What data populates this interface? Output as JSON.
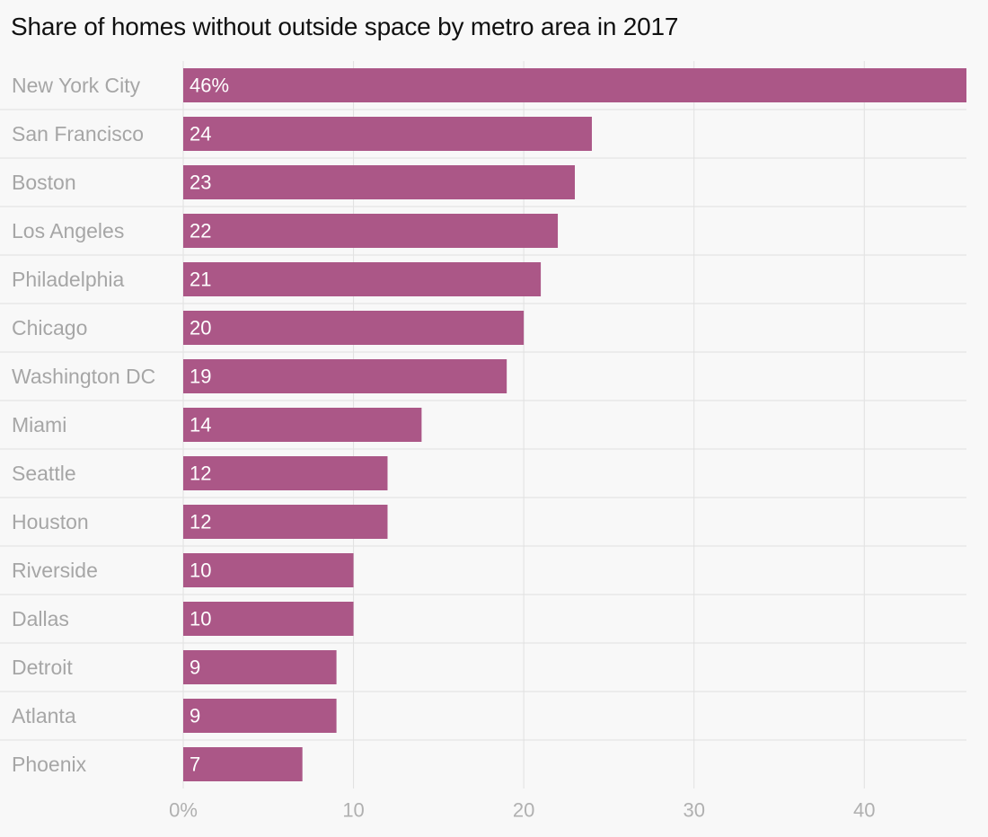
{
  "title": "Share of homes without outside space by metro area in 2017",
  "colors": {
    "bar": "#ab5787",
    "grid": "#e1e1e1",
    "background": "#f8f8f8"
  },
  "chart_data": {
    "type": "bar",
    "orientation": "horizontal",
    "title": "Share of homes without outside space by metro area in 2017",
    "categories": [
      "New York City",
      "San Francisco",
      "Boston",
      "Los Angeles",
      "Philadelphia",
      "Chicago",
      "Washington DC",
      "Miami",
      "Seattle",
      "Houston",
      "Riverside",
      "Dallas",
      "Detroit",
      "Atlanta",
      "Phoenix"
    ],
    "values": [
      46,
      24,
      23,
      22,
      21,
      20,
      19,
      14,
      12,
      12,
      10,
      10,
      9,
      9,
      7
    ],
    "data_labels": [
      "46%",
      "24",
      "23",
      "22",
      "21",
      "20",
      "19",
      "14",
      "12",
      "12",
      "10",
      "10",
      "9",
      "9",
      "7"
    ],
    "x_ticks": [
      0,
      10,
      20,
      30,
      40
    ],
    "x_tick_labels": [
      "0%",
      "10",
      "20",
      "30",
      "40"
    ],
    "xlim": [
      0,
      46
    ],
    "xlabel": "",
    "ylabel": "",
    "grid": true,
    "legend": false
  }
}
